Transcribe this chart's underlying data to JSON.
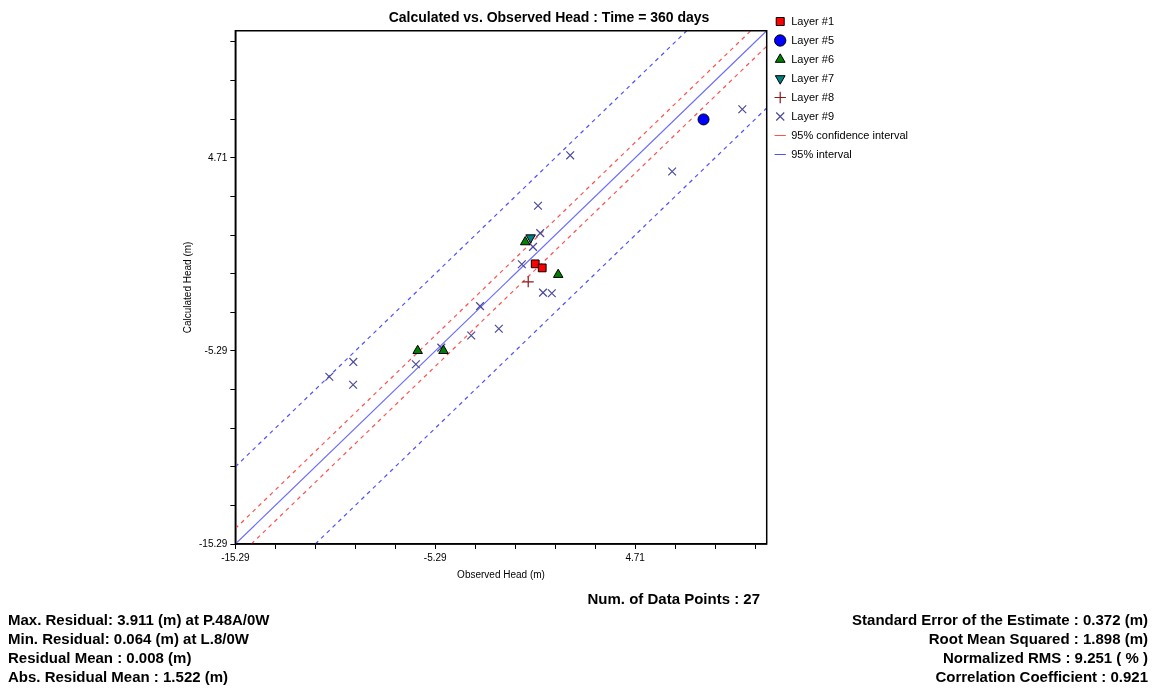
{
  "chart_data": {
    "type": "scatter",
    "title": "Calculated vs. Observed Head : Time = 360 days",
    "xlabel": "Observed Head (m)",
    "ylabel": "Calculated Head (m)",
    "xlim": [
      -15.29,
      11.29
    ],
    "ylim": [
      -15.29,
      11.29
    ],
    "xticks": [
      -15.29,
      {
        "value": -13.29,
        "label": null
      },
      {
        "value": -11.29,
        "label": null
      },
      {
        "value": -9.29,
        "label": null
      },
      {
        "value": -7.29,
        "label": null
      },
      -5.29,
      {
        "value": -3.29,
        "label": null
      },
      {
        "value": -1.29,
        "label": null
      },
      {
        "value": 0.71,
        "label": null
      },
      {
        "value": 2.71,
        "label": null
      },
      4.71,
      {
        "value": 6.71,
        "label": null
      },
      {
        "value": 8.71,
        "label": null
      },
      {
        "value": 10.71,
        "label": null
      }
    ],
    "yticks": [
      -15.29,
      {
        "value": -13.29,
        "label": null
      },
      {
        "value": -11.29,
        "label": null
      },
      {
        "value": -9.29,
        "label": null
      },
      {
        "value": -7.29,
        "label": null
      },
      -5.29,
      {
        "value": -3.29,
        "label": null
      },
      {
        "value": -1.29,
        "label": null
      },
      {
        "value": 0.71,
        "label": null
      },
      {
        "value": 2.71,
        "label": null
      },
      4.71,
      {
        "value": 6.71,
        "label": null
      },
      {
        "value": 8.71,
        "label": null
      },
      {
        "value": 10.71,
        "label": null
      }
    ],
    "grid": false,
    "legend": "top right",
    "series": [
      {
        "name": "Layer #1",
        "marker": "square",
        "color": "#ff0000",
        "x": [
          -0.29,
          0.06
        ],
        "values": [
          -0.78,
          -0.99
        ]
      },
      {
        "name": "Layer #5",
        "marker": "circle",
        "color": "#0000ff",
        "x": [
          8.13
        ],
        "values": [
          6.7
        ]
      },
      {
        "name": "Layer #6",
        "marker": "triangle",
        "color": "#008000",
        "x": [
          -0.79,
          0.86,
          -6.17,
          -4.88
        ],
        "values": [
          0.35,
          -1.34,
          -5.28,
          -5.28
        ]
      },
      {
        "name": "Layer #7",
        "marker": "triangle-down",
        "color": "#008080",
        "x": [
          -0.52
        ],
        "values": [
          0.58
        ]
      },
      {
        "name": "Layer #8",
        "marker": "cross",
        "color": "#8b1a1a",
        "x": [
          -0.64
        ],
        "values": [
          -1.71
        ]
      },
      {
        "name": "Layer #9",
        "marker": "x",
        "color": "#4a4a9a",
        "x": [
          10.07,
          1.46,
          6.56,
          -0.15,
          -0.04,
          -0.4,
          -0.96,
          0.1,
          0.54,
          -3.05,
          -2.11,
          -3.49,
          -4.99,
          -6.26,
          -9.39,
          -10.59,
          -9.4
        ],
        "values": [
          7.23,
          4.84,
          4.0,
          2.23,
          0.81,
          0.1,
          -0.8,
          -2.27,
          -2.3,
          -2.97,
          -4.14,
          -4.49,
          -5.12,
          -5.98,
          -5.86,
          -6.63,
          -7.04
        ]
      },
      {
        "type": "line",
        "marker": "none",
        "line_style": "solid",
        "color": "#6b6bff",
        "x": [
          -15.29,
          11.29
        ],
        "values": [
          -15.29,
          11.29
        ]
      },
      {
        "name": "95% confidence interval",
        "type": "line",
        "marker": "none",
        "line_style": "dashed",
        "color": "#ff5050",
        "x": [
          -15.29,
          10.49
        ],
        "values": [
          -14.49,
          11.29
        ]
      },
      {
        "type": "line",
        "marker": "none",
        "line_style": "dashed",
        "color": "#ff5050",
        "x": [
          -14.49,
          11.29
        ],
        "values": [
          -15.29,
          10.49
        ]
      },
      {
        "name": "95% interval",
        "type": "line",
        "marker": "none",
        "line_style": "dashed",
        "color": "#5050ff",
        "x": [
          -15.29,
          7.29
        ],
        "values": [
          -11.29,
          11.29
        ]
      },
      {
        "type": "line",
        "marker": "none",
        "line_style": "dashed",
        "color": "#5050ff",
        "x": [
          -11.29,
          11.29
        ],
        "values": [
          -15.29,
          7.29
        ]
      }
    ],
    "annotations": [
      "Num. of Data Points : 27",
      "Max. Residual: 3.911 (m) at P.48A/0W",
      "Min. Residual: 0.064 (m) at L.8/0W",
      "Residual Mean : 0.008 (m)",
      "Abs. Residual Mean : 1.522 (m)",
      "Standard Error of the Estimate : 0.372 (m)",
      "Root Mean Squared : 1.898 (m)",
      "Normalized RMS : 9.251 ( % )",
      "Correlation Coefficient : 0.921"
    ]
  }
}
